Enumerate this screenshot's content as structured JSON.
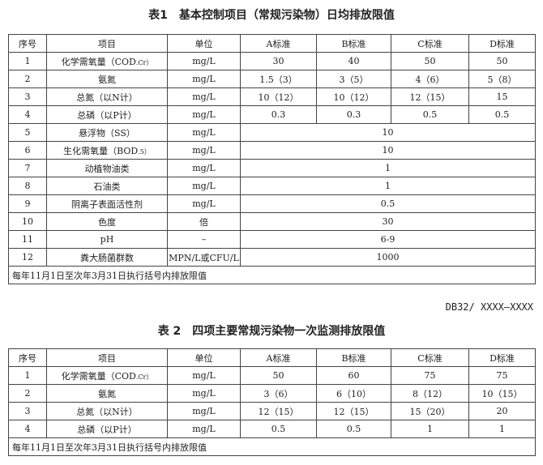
{
  "table1": {
    "title": "表1　基本控制项目（常规污染物）日均排放限值",
    "headers": [
      "序号",
      "项目",
      "单位",
      "A标准",
      "B标准",
      "C标准",
      "D标准"
    ],
    "rows": [
      [
        "1",
        "化学需氧量（COD",
        ".Cr）",
        "mg/L",
        "30",
        "40",
        "50",
        "50"
      ],
      [
        "2",
        "氨氮",
        "",
        "mg/L",
        "1.5（3）",
        "3（5）",
        "4（6）",
        "5（8）"
      ],
      [
        "3",
        "总氮（以N计）",
        "",
        "mg/L",
        "10（12）",
        "10（12）",
        "12（15）",
        "15"
      ],
      [
        "4",
        "总磷（以P计）",
        "",
        "mg/L",
        "0.3",
        "0.3",
        "0.5",
        "0.5"
      ],
      [
        "5",
        "悬浮物（SS）",
        "",
        "mg/L",
        "10"
      ],
      [
        "6",
        "生化需氧量（BOD",
        ".5）",
        "mg/L",
        "10"
      ],
      [
        "7",
        "动植物油类",
        "",
        "mg/L",
        "1"
      ],
      [
        "8",
        "石油类",
        "",
        "mg/L",
        "1"
      ],
      [
        "9",
        "阴离子表面活性剂",
        "",
        "mg/L",
        "0.5"
      ],
      [
        "10",
        "色度",
        "",
        "倍",
        "30"
      ],
      [
        "11",
        "pH",
        "",
        "–",
        "6-9"
      ],
      [
        "12",
        "粪大肠菌群数",
        "",
        "MPN/L或CFU/L",
        "1000"
      ]
    ],
    "note": "每年11月1日至次年3月31日执行括号内排放限值"
  },
  "doc_code": "DB32/ XXXX—XXXX",
  "table2": {
    "title": "表 2　四项主要常规污染物一次监测排放限值",
    "headers": [
      "序号",
      "项目",
      "单位",
      "A标准",
      "B标准",
      "C标准",
      "D标准"
    ],
    "rows": [
      [
        "1",
        "化学需氧量（COD",
        ".Cr）",
        "mg/L",
        "50",
        "60",
        "75",
        "75"
      ],
      [
        "2",
        "氨氮",
        "",
        "mg/L",
        "3（6）",
        "6（10）",
        "8（12）",
        "10（15）"
      ],
      [
        "3",
        "总氮（以N计）",
        "",
        "mg/L",
        "12（15）",
        "12（15）",
        "15（20）",
        "20"
      ],
      [
        "4",
        "总磷（以P计）",
        "",
        "mg/L",
        "0.5",
        "0.5",
        "1",
        "1"
      ]
    ],
    "note": "每年11月1日至次年3月31日执行括号内排放限值"
  }
}
